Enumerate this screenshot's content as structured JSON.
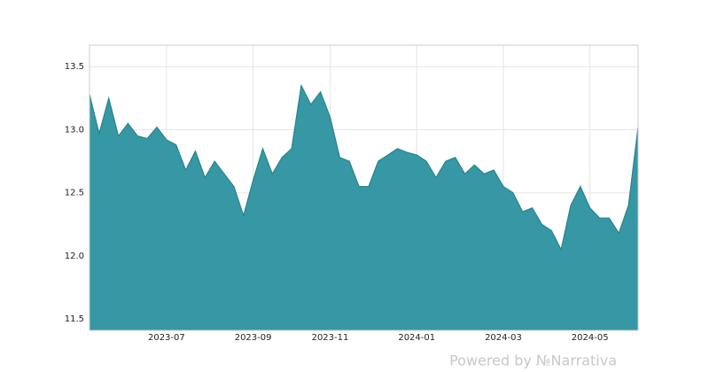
{
  "chart_data": {
    "type": "area",
    "color": "#3598a4",
    "line_color": "#2a8490",
    "grid": true,
    "watermark": "Powered by №Narrativa",
    "categories": [
      null,
      null,
      null,
      null,
      null,
      null,
      null,
      null,
      "2023-07",
      null,
      null,
      null,
      null,
      null,
      null,
      null,
      null,
      "2023-09",
      null,
      null,
      null,
      null,
      null,
      null,
      null,
      "2023-11",
      null,
      null,
      null,
      null,
      null,
      null,
      null,
      null,
      "2024-01",
      null,
      null,
      null,
      null,
      null,
      null,
      null,
      null,
      "2024-03",
      null,
      null,
      null,
      null,
      null,
      null,
      null,
      null,
      "2024-05",
      null,
      null,
      null,
      null,
      null
    ],
    "values": [
      13.28,
      12.97,
      13.25,
      12.95,
      13.05,
      12.95,
      12.93,
      13.02,
      12.92,
      12.88,
      12.68,
      12.83,
      12.62,
      12.75,
      12.65,
      12.55,
      12.32,
      12.6,
      12.85,
      12.65,
      12.78,
      12.85,
      13.35,
      13.2,
      13.3,
      13.1,
      12.78,
      12.75,
      12.55,
      12.55,
      12.75,
      12.8,
      12.85,
      12.82,
      12.8,
      12.75,
      12.62,
      12.75,
      12.78,
      12.65,
      12.72,
      12.65,
      12.68,
      12.55,
      12.5,
      12.35,
      12.38,
      12.25,
      12.2,
      12.05,
      12.4,
      12.55,
      12.38,
      12.3,
      12.3,
      12.18,
      12.4,
      13.02
    ],
    "ylim": [
      11.41,
      13.67
    ],
    "yticks": [
      11.5,
      {
        "value": 12,
        "label": "12.0"
      },
      12.5,
      {
        "value": 13,
        "label": "13.0"
      },
      13.5
    ]
  }
}
